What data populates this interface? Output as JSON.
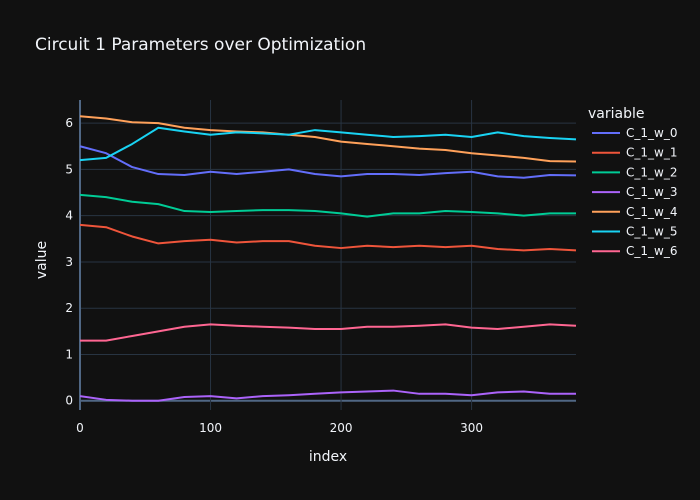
{
  "chart_data": {
    "type": "line",
    "title": "Circuit 1 Parameters over Optimization",
    "xlabel": "index",
    "ylabel": "value",
    "xlim": [
      0,
      380
    ],
    "ylim": [
      -0.2,
      6.5
    ],
    "xticks": [
      0,
      100,
      200,
      300
    ],
    "yticks": [
      0,
      1,
      2,
      3,
      4,
      5,
      6
    ],
    "grid": true,
    "legend_title": "variable",
    "legend_position": "right",
    "x": [
      0,
      20,
      40,
      60,
      80,
      100,
      120,
      140,
      160,
      180,
      200,
      220,
      240,
      260,
      280,
      300,
      320,
      340,
      360,
      380
    ],
    "series": [
      {
        "name": "C_1_w_0",
        "color": "#636efa",
        "values": [
          5.5,
          5.35,
          5.05,
          4.9,
          4.88,
          4.95,
          4.9,
          4.95,
          5.0,
          4.9,
          4.85,
          4.9,
          4.9,
          4.88,
          4.92,
          4.95,
          4.85,
          4.82,
          4.88,
          4.87
        ]
      },
      {
        "name": "C_1_w_1",
        "color": "#ef553b",
        "values": [
          3.8,
          3.75,
          3.55,
          3.4,
          3.45,
          3.48,
          3.42,
          3.45,
          3.45,
          3.35,
          3.3,
          3.35,
          3.32,
          3.35,
          3.32,
          3.35,
          3.28,
          3.25,
          3.28,
          3.25
        ]
      },
      {
        "name": "C_1_w_2",
        "color": "#00cc96",
        "values": [
          4.45,
          4.4,
          4.3,
          4.25,
          4.1,
          4.08,
          4.1,
          4.12,
          4.12,
          4.1,
          4.05,
          3.98,
          4.05,
          4.05,
          4.1,
          4.08,
          4.05,
          4.0,
          4.05,
          4.05
        ]
      },
      {
        "name": "C_1_w_3",
        "color": "#ab63fa",
        "values": [
          0.1,
          0.02,
          0.0,
          0.0,
          0.08,
          0.1,
          0.05,
          0.1,
          0.12,
          0.15,
          0.18,
          0.2,
          0.22,
          0.15,
          0.15,
          0.12,
          0.18,
          0.2,
          0.15,
          0.15
        ]
      },
      {
        "name": "C_1_w_4",
        "color": "#ffa15a",
        "values": [
          6.15,
          6.1,
          6.02,
          6.0,
          5.9,
          5.85,
          5.82,
          5.8,
          5.75,
          5.7,
          5.6,
          5.55,
          5.5,
          5.45,
          5.42,
          5.35,
          5.3,
          5.25,
          5.18,
          5.17
        ]
      },
      {
        "name": "C_1_w_5",
        "color": "#19d3f3",
        "values": [
          5.2,
          5.25,
          5.55,
          5.9,
          5.82,
          5.75,
          5.8,
          5.78,
          5.75,
          5.85,
          5.8,
          5.75,
          5.7,
          5.72,
          5.75,
          5.7,
          5.8,
          5.72,
          5.68,
          5.65
        ]
      },
      {
        "name": "C_1_w_6",
        "color": "#ff6692",
        "values": [
          1.3,
          1.3,
          1.4,
          1.5,
          1.6,
          1.65,
          1.62,
          1.6,
          1.58,
          1.55,
          1.55,
          1.6,
          1.6,
          1.62,
          1.65,
          1.58,
          1.55,
          1.6,
          1.65,
          1.62
        ]
      }
    ]
  }
}
